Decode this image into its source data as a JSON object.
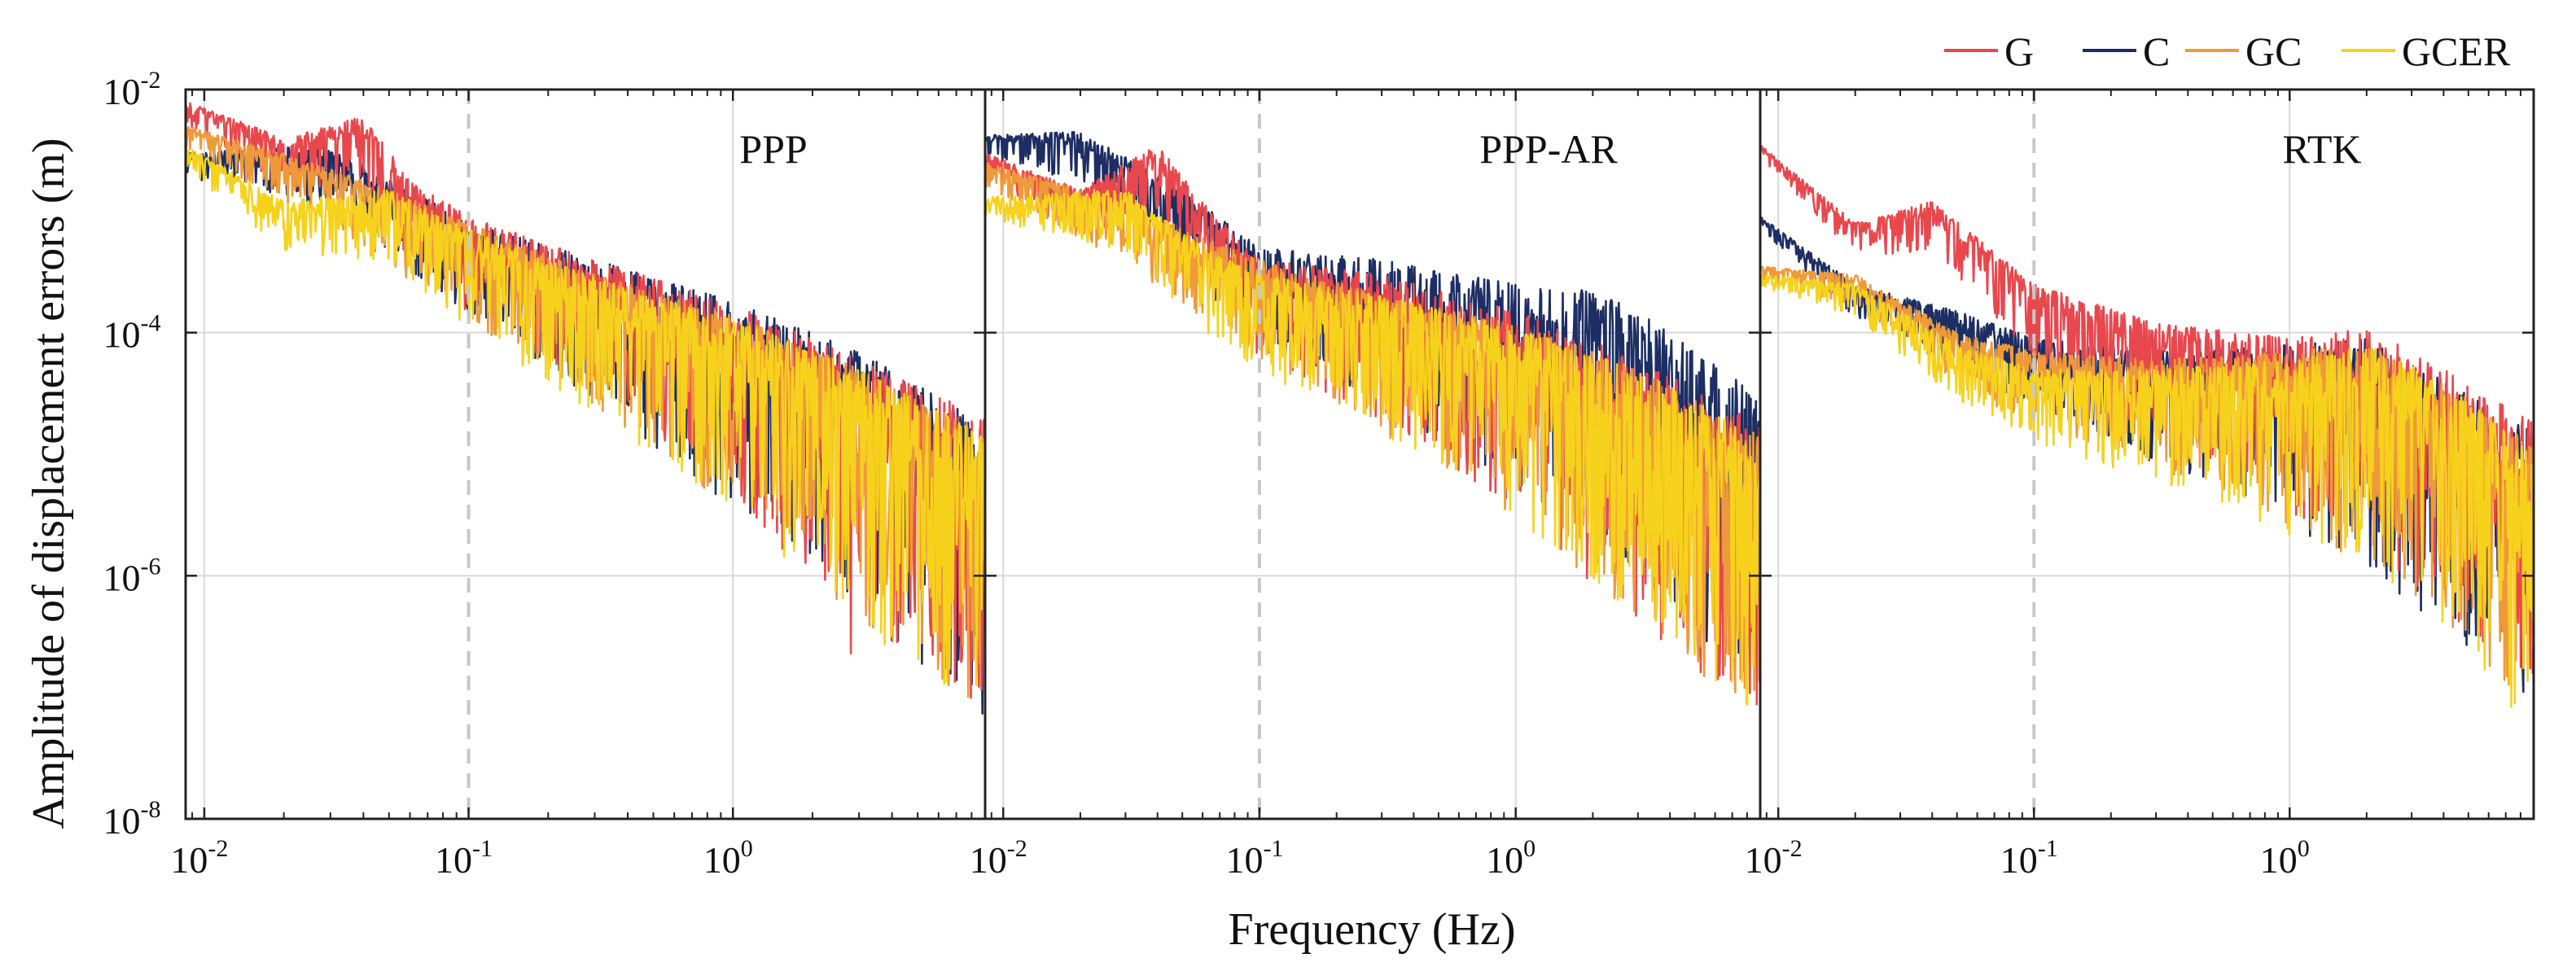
{
  "chart_data": {
    "type": "line",
    "scale": {
      "x": "log",
      "y": "log"
    },
    "xlabel": "Frequency (Hz)",
    "ylabel": "Amplitude of displacement errors (m)",
    "xlim": [
      0.0085,
      9.0
    ],
    "ylim": [
      1e-08,
      0.01
    ],
    "reference_line_x": 0.1,
    "x_ticks": [
      {
        "value": 0.01,
        "base": "10",
        "exp": "-2"
      },
      {
        "value": 0.1,
        "base": "10",
        "exp": "-1"
      },
      {
        "value": 1,
        "base": "10",
        "exp": "0"
      }
    ],
    "y_ticks": [
      {
        "value": 0.01,
        "base": "10",
        "exp": "-2"
      },
      {
        "value": 0.0001,
        "base": "10",
        "exp": "-4"
      },
      {
        "value": 1e-06,
        "base": "10",
        "exp": "-6"
      },
      {
        "value": 1e-08,
        "base": "10",
        "exp": "-8"
      }
    ],
    "legend": [
      {
        "name": "G",
        "color": "#e8484d"
      },
      {
        "name": "C",
        "color": "#1c2e63"
      },
      {
        "name": "GC",
        "color": "#ee9a3a"
      },
      {
        "name": "GCER",
        "color": "#f6d21c"
      }
    ],
    "series_order": [
      "C",
      "G",
      "GC",
      "GCER"
    ],
    "panels": [
      {
        "title": "PPP",
        "series": [
          {
            "name": "G",
            "envelope": [
              [
                0.0085,
                0.008
              ],
              [
                0.02,
                0.004
              ],
              [
                0.04,
                0.006
              ],
              [
                0.06,
                0.0018
              ],
              [
                0.1,
                0.0009
              ],
              [
                0.3,
                0.0004
              ],
              [
                1,
                0.00017
              ],
              [
                3,
                6e-05
              ],
              [
                9,
                2e-05
              ]
            ],
            "spread_dex": [
              [
                0.0085,
                0.2
              ],
              [
                0.1,
                0.8
              ],
              [
                0.5,
                1.3
              ],
              [
                2,
                2.0
              ],
              [
                9,
                2.4
              ]
            ],
            "outlier": [
              2.8,
              2.3e-07
            ]
          },
          {
            "name": "C",
            "envelope": [
              [
                0.0085,
                0.003
              ],
              [
                0.03,
                0.0035
              ],
              [
                0.06,
                0.0015
              ],
              [
                0.1,
                0.0008
              ],
              [
                0.3,
                0.0004
              ],
              [
                1,
                0.00018
              ],
              [
                3,
                7e-05
              ],
              [
                9,
                1.8e-05
              ]
            ],
            "spread_dex": [
              [
                0.0085,
                0.2
              ],
              [
                0.1,
                0.8
              ],
              [
                0.5,
                1.4
              ],
              [
                2,
                2.0
              ],
              [
                9,
                2.6
              ]
            ]
          },
          {
            "name": "GC",
            "envelope": [
              [
                0.0085,
                0.005
              ],
              [
                0.02,
                0.003
              ],
              [
                0.05,
                0.0015
              ],
              [
                0.1,
                0.0008
              ],
              [
                0.3,
                0.0003
              ],
              [
                1,
                0.00014
              ],
              [
                3,
                5e-05
              ],
              [
                9,
                1.5e-05
              ]
            ],
            "spread_dex": [
              [
                0.0085,
                0.2
              ],
              [
                0.1,
                0.8
              ],
              [
                0.5,
                1.3
              ],
              [
                2,
                1.9
              ],
              [
                9,
                2.4
              ]
            ]
          },
          {
            "name": "GCER",
            "envelope": [
              [
                0.0085,
                0.0035
              ],
              [
                0.02,
                0.0012
              ],
              [
                0.05,
                0.0015
              ],
              [
                0.1,
                0.0007
              ],
              [
                0.3,
                0.00028
              ],
              [
                1,
                0.00013
              ],
              [
                3,
                5e-05
              ],
              [
                9,
                1.4e-05
              ]
            ],
            "spread_dex": [
              [
                0.0085,
                0.2
              ],
              [
                0.1,
                0.8
              ],
              [
                0.5,
                1.3
              ],
              [
                2,
                1.9
              ],
              [
                9,
                2.5
              ]
            ]
          }
        ]
      },
      {
        "title": "PPP-AR",
        "series": [
          {
            "name": "G",
            "envelope": [
              [
                0.0085,
                0.003
              ],
              [
                0.02,
                0.0015
              ],
              [
                0.04,
                0.0035
              ],
              [
                0.06,
                0.0012
              ],
              [
                0.1,
                0.0004
              ],
              [
                0.3,
                0.0003
              ],
              [
                1,
                0.00015
              ],
              [
                3,
                6e-05
              ],
              [
                9,
                1.8e-05
              ]
            ],
            "spread_dex": [
              [
                0.0085,
                0.2
              ],
              [
                0.1,
                0.8
              ],
              [
                0.5,
                1.4
              ],
              [
                2,
                2.0
              ],
              [
                9,
                2.5
              ]
            ]
          },
          {
            "name": "C",
            "envelope": [
              [
                0.0085,
                0.0042
              ],
              [
                0.02,
                0.0045
              ],
              [
                0.05,
                0.0015
              ],
              [
                0.1,
                0.0005
              ],
              [
                0.3,
                0.0004
              ],
              [
                1,
                0.00025
              ],
              [
                2,
                0.00022
              ],
              [
                3,
                0.00015
              ],
              [
                9,
                3e-05
              ]
            ],
            "spread_dex": [
              [
                0.0085,
                0.2
              ],
              [
                0.1,
                0.8
              ],
              [
                0.5,
                1.4
              ],
              [
                2,
                2.0
              ],
              [
                9,
                2.5
              ]
            ]
          },
          {
            "name": "GC",
            "envelope": [
              [
                0.0085,
                0.0025
              ],
              [
                0.03,
                0.0012
              ],
              [
                0.06,
                0.0006
              ],
              [
                0.1,
                0.0004
              ],
              [
                0.3,
                0.0002
              ],
              [
                1,
                0.00012
              ],
              [
                3,
                5e-05
              ],
              [
                9,
                1.4e-05
              ]
            ],
            "spread_dex": [
              [
                0.0085,
                0.2
              ],
              [
                0.1,
                0.8
              ],
              [
                0.5,
                1.3
              ],
              [
                2,
                1.9
              ],
              [
                9,
                2.4
              ]
            ]
          },
          {
            "name": "GCER",
            "envelope": [
              [
                0.0085,
                0.0013
              ],
              [
                0.03,
                0.0015
              ],
              [
                0.06,
                0.0005
              ],
              [
                0.1,
                0.0003
              ],
              [
                0.3,
                0.0002
              ],
              [
                1,
                0.00011
              ],
              [
                3,
                5e-05
              ],
              [
                9,
                1.3e-05
              ]
            ],
            "spread_dex": [
              [
                0.0085,
                0.2
              ],
              [
                0.1,
                0.8
              ],
              [
                0.5,
                1.3
              ],
              [
                2,
                1.9
              ],
              [
                9,
                2.4
              ]
            ]
          }
        ]
      },
      {
        "title": "RTK",
        "series": [
          {
            "name": "G",
            "envelope": [
              [
                0.0085,
                0.0035
              ],
              [
                0.02,
                0.0008
              ],
              [
                0.04,
                0.0012
              ],
              [
                0.1,
                0.00025
              ],
              [
                0.3,
                0.00012
              ],
              [
                1,
                9e-05
              ],
              [
                2,
                0.00011
              ],
              [
                4,
                5e-05
              ],
              [
                9,
                1.8e-05
              ]
            ],
            "spread_dex": [
              [
                0.0085,
                0.1
              ],
              [
                0.1,
                0.6
              ],
              [
                0.5,
                1.1
              ],
              [
                2,
                1.8
              ],
              [
                9,
                2.2
              ]
            ]
          },
          {
            "name": "C",
            "envelope": [
              [
                0.0085,
                0.0009
              ],
              [
                0.02,
                0.00025
              ],
              [
                0.05,
                0.00015
              ],
              [
                0.1,
                9e-05
              ],
              [
                0.3,
                7e-05
              ],
              [
                1,
                8e-05
              ],
              [
                2,
                9e-05
              ],
              [
                4,
                4e-05
              ],
              [
                9,
                1.5e-05
              ]
            ],
            "spread_dex": [
              [
                0.0085,
                0.1
              ],
              [
                0.1,
                0.6
              ],
              [
                0.5,
                1.1
              ],
              [
                2,
                1.9
              ],
              [
                9,
                2.2
              ]
            ]
          },
          {
            "name": "GC",
            "envelope": [
              [
                0.0085,
                0.00035
              ],
              [
                0.02,
                0.0003
              ],
              [
                0.05,
                0.0001
              ],
              [
                0.1,
                7e-05
              ],
              [
                0.3,
                6e-05
              ],
              [
                1,
                7e-05
              ],
              [
                2,
                8e-05
              ],
              [
                4,
                4e-05
              ],
              [
                9,
                1.2e-05
              ]
            ],
            "spread_dex": [
              [
                0.0085,
                0.1
              ],
              [
                0.1,
                0.6
              ],
              [
                0.5,
                1.1
              ],
              [
                2,
                1.8
              ],
              [
                9,
                2.2
              ]
            ]
          },
          {
            "name": "GCER",
            "envelope": [
              [
                0.0085,
                0.0003
              ],
              [
                0.02,
                0.00025
              ],
              [
                0.05,
                8e-05
              ],
              [
                0.1,
                5e-05
              ],
              [
                0.3,
                5e-05
              ],
              [
                1,
                6e-05
              ],
              [
                2,
                8e-05
              ],
              [
                4,
                4e-05
              ],
              [
                9,
                1e-05
              ]
            ],
            "spread_dex": [
              [
                0.0085,
                0.1
              ],
              [
                0.1,
                0.6
              ],
              [
                0.5,
                1.1
              ],
              [
                2,
                1.8
              ],
              [
                9,
                2.3
              ]
            ]
          }
        ]
      }
    ]
  }
}
